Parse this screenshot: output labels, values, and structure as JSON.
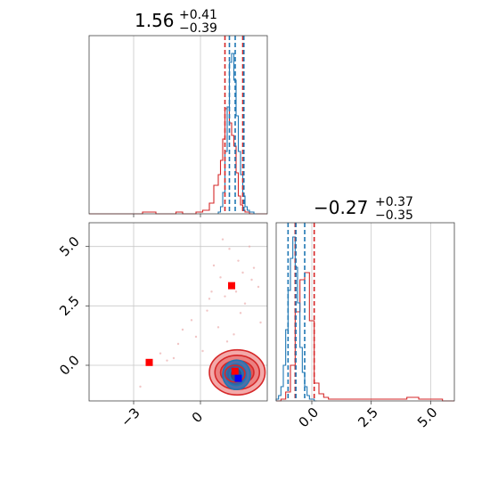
{
  "chart_data": [
    {
      "type": "histogram",
      "title_value": "1.56",
      "title_plus": "+0.41",
      "title_minus": "−0.39",
      "xlim": [
        -5.0,
        3.0
      ],
      "ylim": [
        0,
        1.0
      ],
      "grid": true,
      "tick_positions": [
        -3,
        0
      ],
      "series": [
        {
          "color": "#d62728",
          "bin_edges": [
            -5.0,
            -4.7,
            -4.4,
            -4.1,
            -3.8,
            -3.5,
            -3.2,
            -2.9,
            -2.6,
            -2.3,
            -2.0,
            -1.7,
            -1.4,
            -1.1,
            -0.8,
            -0.5,
            -0.2,
            0.1,
            0.4,
            0.6,
            0.8,
            0.9,
            1.0,
            1.1,
            1.2,
            1.3,
            1.4,
            1.5,
            1.6,
            1.7,
            1.8,
            1.9,
            2.0,
            2.1,
            2.2,
            2.3,
            2.5,
            2.7,
            3.0
          ],
          "heights": [
            0,
            0,
            0,
            0,
            0,
            0,
            0,
            0,
            0.01,
            0.01,
            0,
            0,
            0,
            0.01,
            0,
            0,
            0.01,
            0.02,
            0.06,
            0.16,
            0.22,
            0.3,
            0.42,
            0.59,
            0.6,
            0.51,
            0.44,
            0.38,
            0.23,
            0.1,
            0.05,
            0.02,
            0.01,
            0.01,
            0,
            0,
            0,
            0
          ]
        },
        {
          "color": "#1f77b4",
          "bin_edges": [
            0.8,
            0.9,
            1.0,
            1.1,
            1.2,
            1.3,
            1.4,
            1.5,
            1.6,
            1.7,
            1.8,
            1.9,
            2.0,
            2.1,
            2.2,
            2.3,
            2.4,
            2.5
          ],
          "heights": [
            0.01,
            0.04,
            0.12,
            0.35,
            0.6,
            0.85,
            0.9,
            0.75,
            0.55,
            0.35,
            0.22,
            0.1,
            0.04,
            0.02,
            0.01,
            0.01,
            0
          ]
        }
      ],
      "quantile_lines": [
        {
          "x": 1.1,
          "color": "#d62728"
        },
        {
          "x": 1.9,
          "color": "#d62728"
        },
        {
          "x": 1.3,
          "color": "#1f77b4"
        },
        {
          "x": 1.95,
          "color": "#1f77b4"
        },
        {
          "x": 1.56,
          "color": "#1f77b4"
        }
      ]
    },
    {
      "type": "scatter",
      "xlim": [
        -5.0,
        3.0
      ],
      "ylim": [
        -1.5,
        6.0
      ],
      "grid": true,
      "x_ticks": [
        "−3",
        "0"
      ],
      "x_tick_positions": [
        -3,
        0
      ],
      "y_ticks": [
        "0.0",
        "2.5",
        "5.0"
      ],
      "y_tick_positions": [
        0,
        2.5,
        5.0
      ],
      "markers": [
        {
          "x": 1.4,
          "y": 3.35,
          "color": "#ff0000"
        },
        {
          "x": -2.3,
          "y": 0.12,
          "color": "#ff0000"
        },
        {
          "x": 1.55,
          "y": -0.25,
          "color": "#ff0000"
        },
        {
          "x": 1.7,
          "y": -0.55,
          "color": "#0000ff"
        }
      ],
      "points": [
        {
          "x": 1.0,
          "y": 5.3
        },
        {
          "x": 1.3,
          "y": 4.9
        },
        {
          "x": 0.6,
          "y": 4.2
        },
        {
          "x": 2.3,
          "y": 3.6
        },
        {
          "x": 1.9,
          "y": 3.9
        },
        {
          "x": 0.5,
          "y": 3.1
        },
        {
          "x": 2.6,
          "y": 3.3
        },
        {
          "x": 1.1,
          "y": 2.9
        },
        {
          "x": 0.3,
          "y": 2.3
        },
        {
          "x": -0.8,
          "y": 1.5
        },
        {
          "x": -0.2,
          "y": 1.2
        },
        {
          "x": 2.0,
          "y": 2.6
        },
        {
          "x": 1.7,
          "y": 4.4
        },
        {
          "x": 0.9,
          "y": 3.7
        },
        {
          "x": 2.4,
          "y": 4.1
        },
        {
          "x": -1.0,
          "y": 0.9
        },
        {
          "x": -1.8,
          "y": 0.5
        },
        {
          "x": -1.2,
          "y": 0.3
        },
        {
          "x": -2.7,
          "y": -0.9
        },
        {
          "x": -1.5,
          "y": 0.2
        },
        {
          "x": 0.8,
          "y": 1.6
        },
        {
          "x": 2.7,
          "y": 1.8
        },
        {
          "x": 1.5,
          "y": 1.3
        },
        {
          "x": 1.2,
          "y": 1.0
        },
        {
          "x": 0.4,
          "y": 2.8
        },
        {
          "x": 2.2,
          "y": 5.0
        },
        {
          "x": 1.8,
          "y": 2.2
        },
        {
          "x": -0.4,
          "y": 1.9
        },
        {
          "x": 0.1,
          "y": 0.6
        },
        {
          "x": 1.6,
          "y": 3.1
        }
      ],
      "contours": [
        {
          "cx": 1.65,
          "cy": -0.3,
          "rx": 1.25,
          "ry": 0.95,
          "fill": "#f3a9a9",
          "stroke": "#d62728"
        },
        {
          "cx": 1.65,
          "cy": -0.3,
          "rx": 1.0,
          "ry": 0.72,
          "fill": "#eb8080",
          "stroke": "#d62728"
        },
        {
          "cx": 1.65,
          "cy": -0.3,
          "rx": 0.75,
          "ry": 0.5,
          "fill": "#e15555",
          "stroke": "#d62728"
        },
        {
          "cx": 1.62,
          "cy": -0.4,
          "rx": 0.62,
          "ry": 0.62,
          "fill": "#4f6fa8",
          "stroke": "#1f77b4"
        },
        {
          "cx": 1.6,
          "cy": -0.4,
          "rx": 0.45,
          "ry": 0.45,
          "fill": "#3b5f9c",
          "stroke": "#1f77b4"
        },
        {
          "cx": 1.6,
          "cy": -0.4,
          "rx": 0.28,
          "ry": 0.3,
          "fill": "#2c4f8c",
          "stroke": "#1f77b4"
        },
        {
          "cx": 1.55,
          "cy": -0.35,
          "rx": 0.45,
          "ry": 0.35,
          "fill": "none",
          "stroke": "#d62728"
        }
      ]
    },
    {
      "type": "histogram",
      "title_value": "−0.27",
      "title_plus": "+0.37",
      "title_minus": "−0.35",
      "xlim": [
        -1.5,
        6.0
      ],
      "ylim": [
        0,
        1.0
      ],
      "grid": true,
      "x_ticks": [
        "0.0",
        "2.5",
        "5.0"
      ],
      "x_tick_positions": [
        0,
        2.5,
        5.0
      ],
      "series": [
        {
          "color": "#d62728",
          "bin_edges": [
            -1.5,
            -1.3,
            -1.1,
            -0.9,
            -0.7,
            -0.5,
            -0.3,
            -0.1,
            0.1,
            0.3,
            0.5,
            0.7,
            1.0,
            1.5,
            2.0,
            2.5,
            3.0,
            3.5,
            4.0,
            4.5,
            5.0,
            5.5,
            6.0
          ],
          "heights": [
            0,
            0.01,
            0.05,
            0.2,
            0.5,
            0.68,
            0.72,
            0.45,
            0.1,
            0.04,
            0.02,
            0.01,
            0.01,
            0.01,
            0.01,
            0.01,
            0.01,
            0.01,
            0.02,
            0.01,
            0.01,
            0
          ]
        },
        {
          "color": "#1f77b4",
          "bin_edges": [
            -1.5,
            -1.4,
            -1.3,
            -1.2,
            -1.1,
            -1.0,
            -0.9,
            -0.8,
            -0.7,
            -0.6,
            -0.5,
            -0.4,
            -0.3,
            -0.2,
            -0.1,
            0.0,
            0.1,
            0.2
          ],
          "heights": [
            0.01,
            0.03,
            0.08,
            0.2,
            0.4,
            0.62,
            0.8,
            0.92,
            0.75,
            0.55,
            0.3,
            0.16,
            0.08,
            0.03,
            0.01,
            0.01,
            0
          ]
        }
      ],
      "quantile_lines": [
        {
          "x": -0.7,
          "color": "#d62728"
        },
        {
          "x": 0.1,
          "color": "#d62728"
        },
        {
          "x": -1.0,
          "color": "#1f77b4"
        },
        {
          "x": -0.3,
          "color": "#1f77b4"
        },
        {
          "x": -0.67,
          "color": "#1f77b4"
        }
      ]
    }
  ]
}
